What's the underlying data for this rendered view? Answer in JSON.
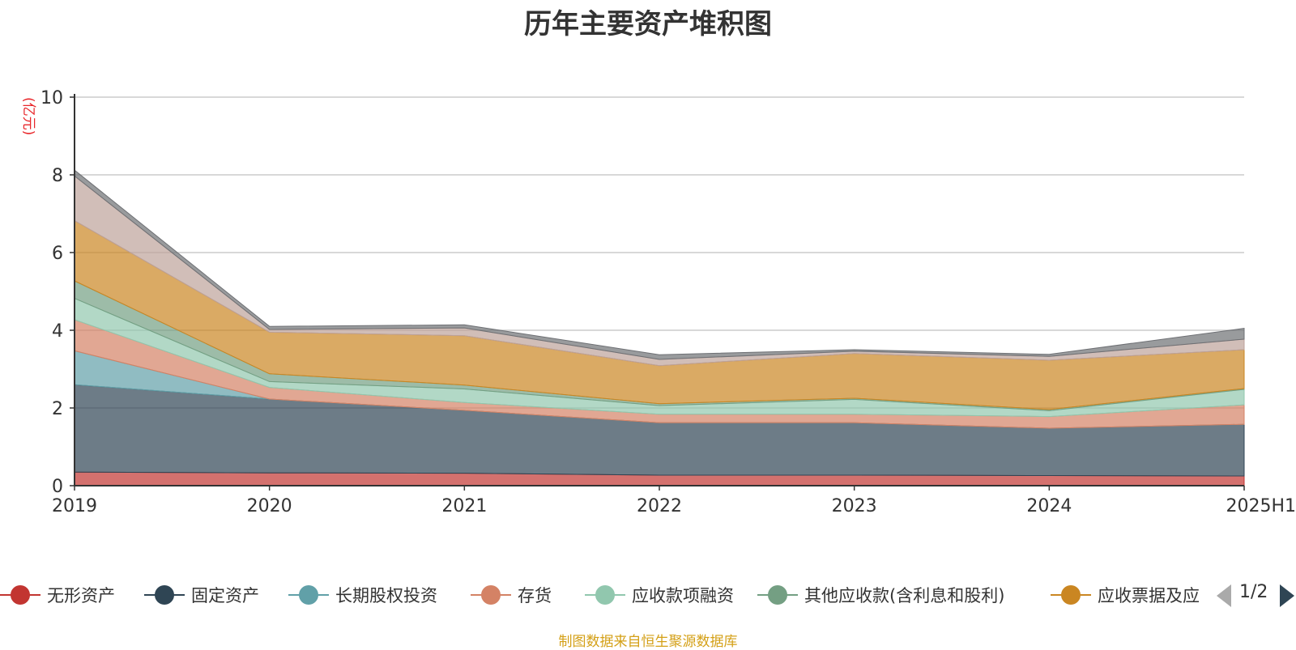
{
  "chart_data": {
    "type": "area",
    "stacked": true,
    "title": "历年主要资产堆积图",
    "ylabel": "(亿元)",
    "xlabel": "",
    "categories": [
      "2019",
      "2020",
      "2021",
      "2022",
      "2023",
      "2024",
      "2025H1"
    ],
    "ylim": [
      0,
      10
    ],
    "yticks": [
      0,
      2,
      4,
      6,
      8,
      10
    ],
    "grid": true,
    "legend_position": "bottom",
    "series": [
      {
        "name": "无形资产",
        "color": "#c23531",
        "values": [
          0.35,
          0.33,
          0.32,
          0.27,
          0.27,
          0.26,
          0.25
        ]
      },
      {
        "name": "固定资产",
        "color": "#2f4554",
        "values": [
          2.25,
          1.9,
          1.62,
          1.35,
          1.35,
          1.22,
          1.33
        ]
      },
      {
        "name": "长期股权投资",
        "color": "#61a0a8",
        "values": [
          0.87,
          0.0,
          0.0,
          0.0,
          0.0,
          0.0,
          0.0
        ]
      },
      {
        "name": "存货",
        "color": "#d48265",
        "values": [
          0.8,
          0.3,
          0.2,
          0.22,
          0.22,
          0.3,
          0.5
        ]
      },
      {
        "name": "应收款项融资",
        "color": "#91c7ae",
        "values": [
          0.55,
          0.15,
          0.35,
          0.22,
          0.38,
          0.15,
          0.4
        ]
      },
      {
        "name": "其他应收款(含利息和股利)",
        "color": "#749f83",
        "values": [
          0.45,
          0.2,
          0.1,
          0.05,
          0.03,
          0.03,
          0.02
        ]
      },
      {
        "name": "应收票据及应收账款",
        "color": "#ca8622",
        "values": [
          1.55,
          1.07,
          1.27,
          0.98,
          1.15,
          1.27,
          1.0
        ]
      },
      {
        "name": "",
        "color": "#bda29a",
        "values": [
          1.15,
          0.07,
          0.2,
          0.16,
          0.06,
          0.1,
          0.27
        ]
      },
      {
        "name": "",
        "color": "#6e7074",
        "values": [
          0.15,
          0.08,
          0.08,
          0.12,
          0.04,
          0.05,
          0.28
        ]
      }
    ]
  },
  "legend": {
    "page_indicator": "1/2",
    "visible_labels": [
      "无形资产",
      "固定资产",
      "长期股权投资",
      "存货",
      "应收款项融资",
      "其他应收款(含利息和股利)",
      "应收票据及应收账款"
    ]
  },
  "footer": {
    "source_note": "制图数据来自恒生聚源数据库"
  }
}
